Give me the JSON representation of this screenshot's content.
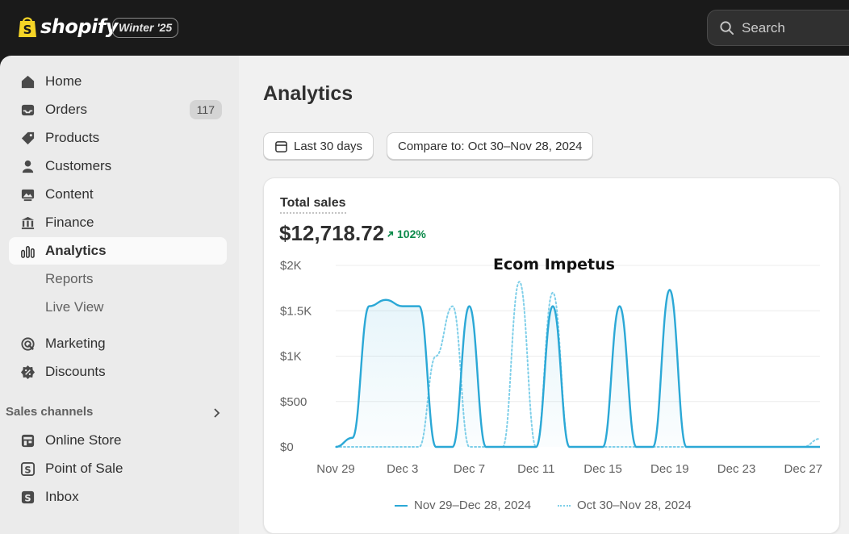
{
  "brand": {
    "name": "shopify",
    "edition": "Winter '25"
  },
  "search": {
    "placeholder": "Search"
  },
  "sidebar": {
    "items": [
      {
        "label": "Home",
        "icon": "home-icon"
      },
      {
        "label": "Orders",
        "icon": "inbox-tray-icon",
        "badge": "117"
      },
      {
        "label": "Products",
        "icon": "tag-icon"
      },
      {
        "label": "Customers",
        "icon": "person-icon"
      },
      {
        "label": "Content",
        "icon": "image-icon"
      },
      {
        "label": "Finance",
        "icon": "bank-icon"
      },
      {
        "label": "Analytics",
        "icon": "bar-chart-icon",
        "active": true
      },
      {
        "label": "Reports"
      },
      {
        "label": "Live View"
      },
      {
        "label": "Marketing",
        "icon": "target-icon"
      },
      {
        "label": "Discounts",
        "icon": "discount-icon"
      }
    ],
    "sales_channels_label": "Sales channels",
    "channels": [
      {
        "label": "Online Store",
        "icon": "store-icon"
      },
      {
        "label": "Point of Sale",
        "icon": "pos-icon"
      },
      {
        "label": "Inbox",
        "icon": "chat-icon"
      }
    ]
  },
  "main": {
    "title": "Analytics",
    "date_button": "Last 30 days",
    "compare_button": "Compare to: Oct 30–Nov 28, 2024",
    "metric_label": "Total sales",
    "metric_value": "$12,718.72",
    "metric_change": "102%",
    "watermark": "Ecom Impetus"
  },
  "colors": {
    "accent_line": "#2ba8d6",
    "compare_line": "#7fcfe9",
    "positive": "#0b8a4a"
  },
  "chart_data": {
    "type": "line",
    "x": [
      "Nov 29",
      "Nov 30",
      "Dec 1",
      "Dec 2",
      "Dec 3",
      "Dec 4",
      "Dec 5",
      "Dec 6",
      "Dec 7",
      "Dec 8",
      "Dec 9",
      "Dec 10",
      "Dec 11",
      "Dec 12",
      "Dec 13",
      "Dec 14",
      "Dec 15",
      "Dec 16",
      "Dec 17",
      "Dec 18",
      "Dec 19",
      "Dec 20",
      "Dec 21",
      "Dec 22",
      "Dec 23",
      "Dec 24",
      "Dec 25",
      "Dec 26",
      "Dec 27",
      "Dec 28"
    ],
    "xticks": [
      "Nov 29",
      "Dec 3",
      "Dec 7",
      "Dec 11",
      "Dec 15",
      "Dec 19",
      "Dec 23",
      "Dec 27"
    ],
    "yticks": [
      "$2K",
      "$1.5K",
      "$1K",
      "$500",
      "$0"
    ],
    "ylim": [
      0,
      2000
    ],
    "grid": true,
    "legend_position": "bottom",
    "series": [
      {
        "name": "Nov 29–Dec 28, 2024",
        "style": "solid",
        "values": [
          0,
          100,
          1550,
          1620,
          1550,
          1550,
          0,
          0,
          1550,
          0,
          0,
          0,
          0,
          1550,
          0,
          0,
          0,
          1550,
          0,
          0,
          1730,
          0,
          0,
          0,
          0,
          0,
          0,
          0,
          0,
          0
        ]
      },
      {
        "name": "Oct 30–Nov 28, 2024",
        "style": "dotted",
        "values": [
          0,
          0,
          0,
          0,
          0,
          0,
          1000,
          1550,
          0,
          0,
          0,
          1820,
          0,
          1700,
          0,
          0,
          0,
          0,
          0,
          0,
          0,
          0,
          0,
          0,
          0,
          0,
          0,
          0,
          0,
          90
        ]
      }
    ]
  }
}
